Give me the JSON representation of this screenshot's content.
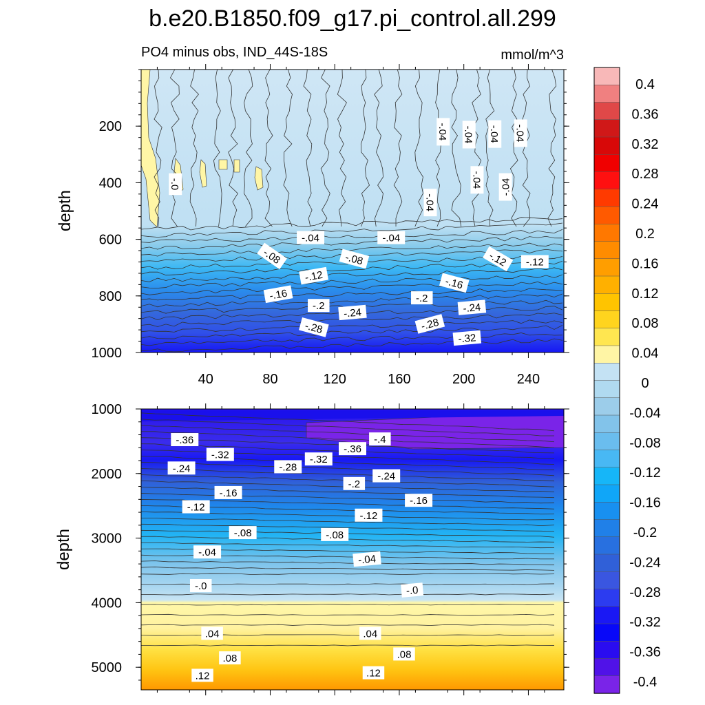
{
  "title": "b.e20.B1850.f09_g17.pi_control.all.299",
  "subtitle_left": "PO4 minus obs, IND_44S-18S",
  "subtitle_right": "mmol/m^3",
  "chart_data": [
    {
      "type": "contour",
      "panel": "upper",
      "title": "",
      "xlabel": "",
      "ylabel": "depth",
      "xlim": [
        0,
        262
      ],
      "ylim": [
        1000,
        0
      ],
      "xticks": [
        40,
        80,
        120,
        160,
        200,
        240
      ],
      "yticks": [
        200,
        400,
        600,
        800,
        1000
      ],
      "description_values": "field mostly -0.04 to 0 in upper 550 m, decreasing to about -0.32 at 1000 m",
      "contour_labels": [
        {
          "text": "-.04",
          "x": 187,
          "y": 220,
          "rot": 90
        },
        {
          "text": "-.04",
          "x": 203,
          "y": 230,
          "rot": 90
        },
        {
          "text": "-.04",
          "x": 219,
          "y": 228,
          "rot": 90
        },
        {
          "text": "-.04",
          "x": 235,
          "y": 225,
          "rot": 90
        },
        {
          "text": "-.04",
          "x": 208,
          "y": 390,
          "rot": 90
        },
        {
          "text": "-.04",
          "x": 226,
          "y": 415,
          "rot": -90
        },
        {
          "text": "-.04",
          "x": 179,
          "y": 470,
          "rot": 90
        },
        {
          "text": "-.0",
          "x": 21,
          "y": 405,
          "rot": 90
        },
        {
          "text": "-.04",
          "x": 105,
          "y": 595,
          "rot": 0
        },
        {
          "text": "-.04",
          "x": 155,
          "y": 595,
          "rot": 0
        },
        {
          "text": "-.08",
          "x": 81,
          "y": 660,
          "rot": 35
        },
        {
          "text": "-.08",
          "x": 132,
          "y": 670,
          "rot": 15
        },
        {
          "text": "-.12",
          "x": 107,
          "y": 730,
          "rot": -10
        },
        {
          "text": "-.12",
          "x": 221,
          "y": 670,
          "rot": 30
        },
        {
          "text": "-.12",
          "x": 244,
          "y": 680,
          "rot": 0
        },
        {
          "text": "-.16",
          "x": 85,
          "y": 795,
          "rot": -10
        },
        {
          "text": "-.16",
          "x": 194,
          "y": 755,
          "rot": 15
        },
        {
          "text": "-.2",
          "x": 110,
          "y": 835,
          "rot": 0
        },
        {
          "text": "-.2",
          "x": 174,
          "y": 808,
          "rot": 0
        },
        {
          "text": "-.24",
          "x": 131,
          "y": 860,
          "rot": -5
        },
        {
          "text": "-.24",
          "x": 205,
          "y": 842,
          "rot": -5
        },
        {
          "text": "-.28",
          "x": 107,
          "y": 912,
          "rot": 15
        },
        {
          "text": "-.28",
          "x": 179,
          "y": 900,
          "rot": -15
        },
        {
          "text": "-.32",
          "x": 202,
          "y": 950,
          "rot": -5
        }
      ]
    },
    {
      "type": "contour",
      "panel": "lower",
      "title": "",
      "xlabel": "",
      "ylabel": "depth",
      "xlim": [
        0,
        262
      ],
      "ylim": [
        5350,
        1000
      ],
      "xticks": [
        40,
        80,
        120,
        160,
        200,
        240
      ],
      "yticks": [
        1000,
        2000,
        3000,
        4000,
        5000
      ],
      "description_values": "field about -0.4 near 1000-1600 m, increasing to 0 near 3700 m, positive up to about 0.14 at bottom",
      "contour_labels": [
        {
          "text": "-.36",
          "x": 27,
          "y": 1480,
          "rot": 0
        },
        {
          "text": "-.4",
          "x": 148,
          "y": 1470,
          "rot": 0
        },
        {
          "text": "-.36",
          "x": 131,
          "y": 1620,
          "rot": 0
        },
        {
          "text": "-.32",
          "x": 49,
          "y": 1710,
          "rot": 0
        },
        {
          "text": "-.32",
          "x": 110,
          "y": 1780,
          "rot": 0
        },
        {
          "text": "-.28",
          "x": 91,
          "y": 1900,
          "rot": 0
        },
        {
          "text": "-.24",
          "x": 25,
          "y": 1920,
          "rot": 0
        },
        {
          "text": "-.24",
          "x": 152,
          "y": 2040,
          "rot": 0
        },
        {
          "text": "-.2",
          "x": 132,
          "y": 2160,
          "rot": 0
        },
        {
          "text": "-.16",
          "x": 54,
          "y": 2300,
          "rot": 0
        },
        {
          "text": "-.16",
          "x": 172,
          "y": 2420,
          "rot": 0
        },
        {
          "text": "-.12",
          "x": 34,
          "y": 2520,
          "rot": 0
        },
        {
          "text": "-.12",
          "x": 141,
          "y": 2650,
          "rot": 0
        },
        {
          "text": "-.08",
          "x": 63,
          "y": 2920,
          "rot": 0
        },
        {
          "text": "-.08",
          "x": 120,
          "y": 2950,
          "rot": 0
        },
        {
          "text": "-.04",
          "x": 41,
          "y": 3220,
          "rot": 0
        },
        {
          "text": "-.04",
          "x": 140,
          "y": 3330,
          "rot": -5
        },
        {
          "text": "-.0",
          "x": 37,
          "y": 3740,
          "rot": 0
        },
        {
          "text": "-.0",
          "x": 168,
          "y": 3810,
          "rot": -5
        },
        {
          "text": ".04",
          "x": 44,
          "y": 4480,
          "rot": 0
        },
        {
          "text": ".04",
          "x": 142,
          "y": 4480,
          "rot": 0
        },
        {
          "text": ".08",
          "x": 55,
          "y": 4860,
          "rot": 0
        },
        {
          "text": ".08",
          "x": 163,
          "y": 4800,
          "rot": 0
        },
        {
          "text": ".12",
          "x": 38,
          "y": 5130,
          "rot": 0
        },
        {
          "text": ".12",
          "x": 144,
          "y": 5090,
          "rot": 0
        }
      ]
    }
  ],
  "colorbar": {
    "levels": [
      "0.4",
      "0.36",
      "0.32",
      "0.28",
      "0.24",
      "0.2",
      "0.16",
      "0.12",
      "0.08",
      "0.04",
      "0",
      "-0.04",
      "-0.08",
      "-0.12",
      "-0.16",
      "-0.2",
      "-0.24",
      "-0.28",
      "-0.32",
      "-0.36",
      "-0.4"
    ],
    "colors": [
      "#f8b8b8",
      "#f08080",
      "#e04848",
      "#d01818",
      "#d80808",
      "#f00000",
      "#ff1010",
      "#ff3a00",
      "#ff5a00",
      "#ff7800",
      "#ff8c00",
      "#ff9e00",
      "#ffb000",
      "#ffc400",
      "#ffd41e",
      "#ffe650",
      "#fff5a5",
      "#c4e2f4",
      "#b0daf0",
      "#9ccdea",
      "#82c3ea",
      "#6abdee",
      "#48b8f4",
      "#16b6f8",
      "#10a6f8",
      "#1890f0",
      "#2080e8",
      "#2870e0",
      "#3060d8",
      "#3a56e0",
      "#2c3cf0",
      "#1a18f4",
      "#0808f8",
      "#2a0cf0",
      "#5012e8",
      "#7a24e8"
    ]
  }
}
